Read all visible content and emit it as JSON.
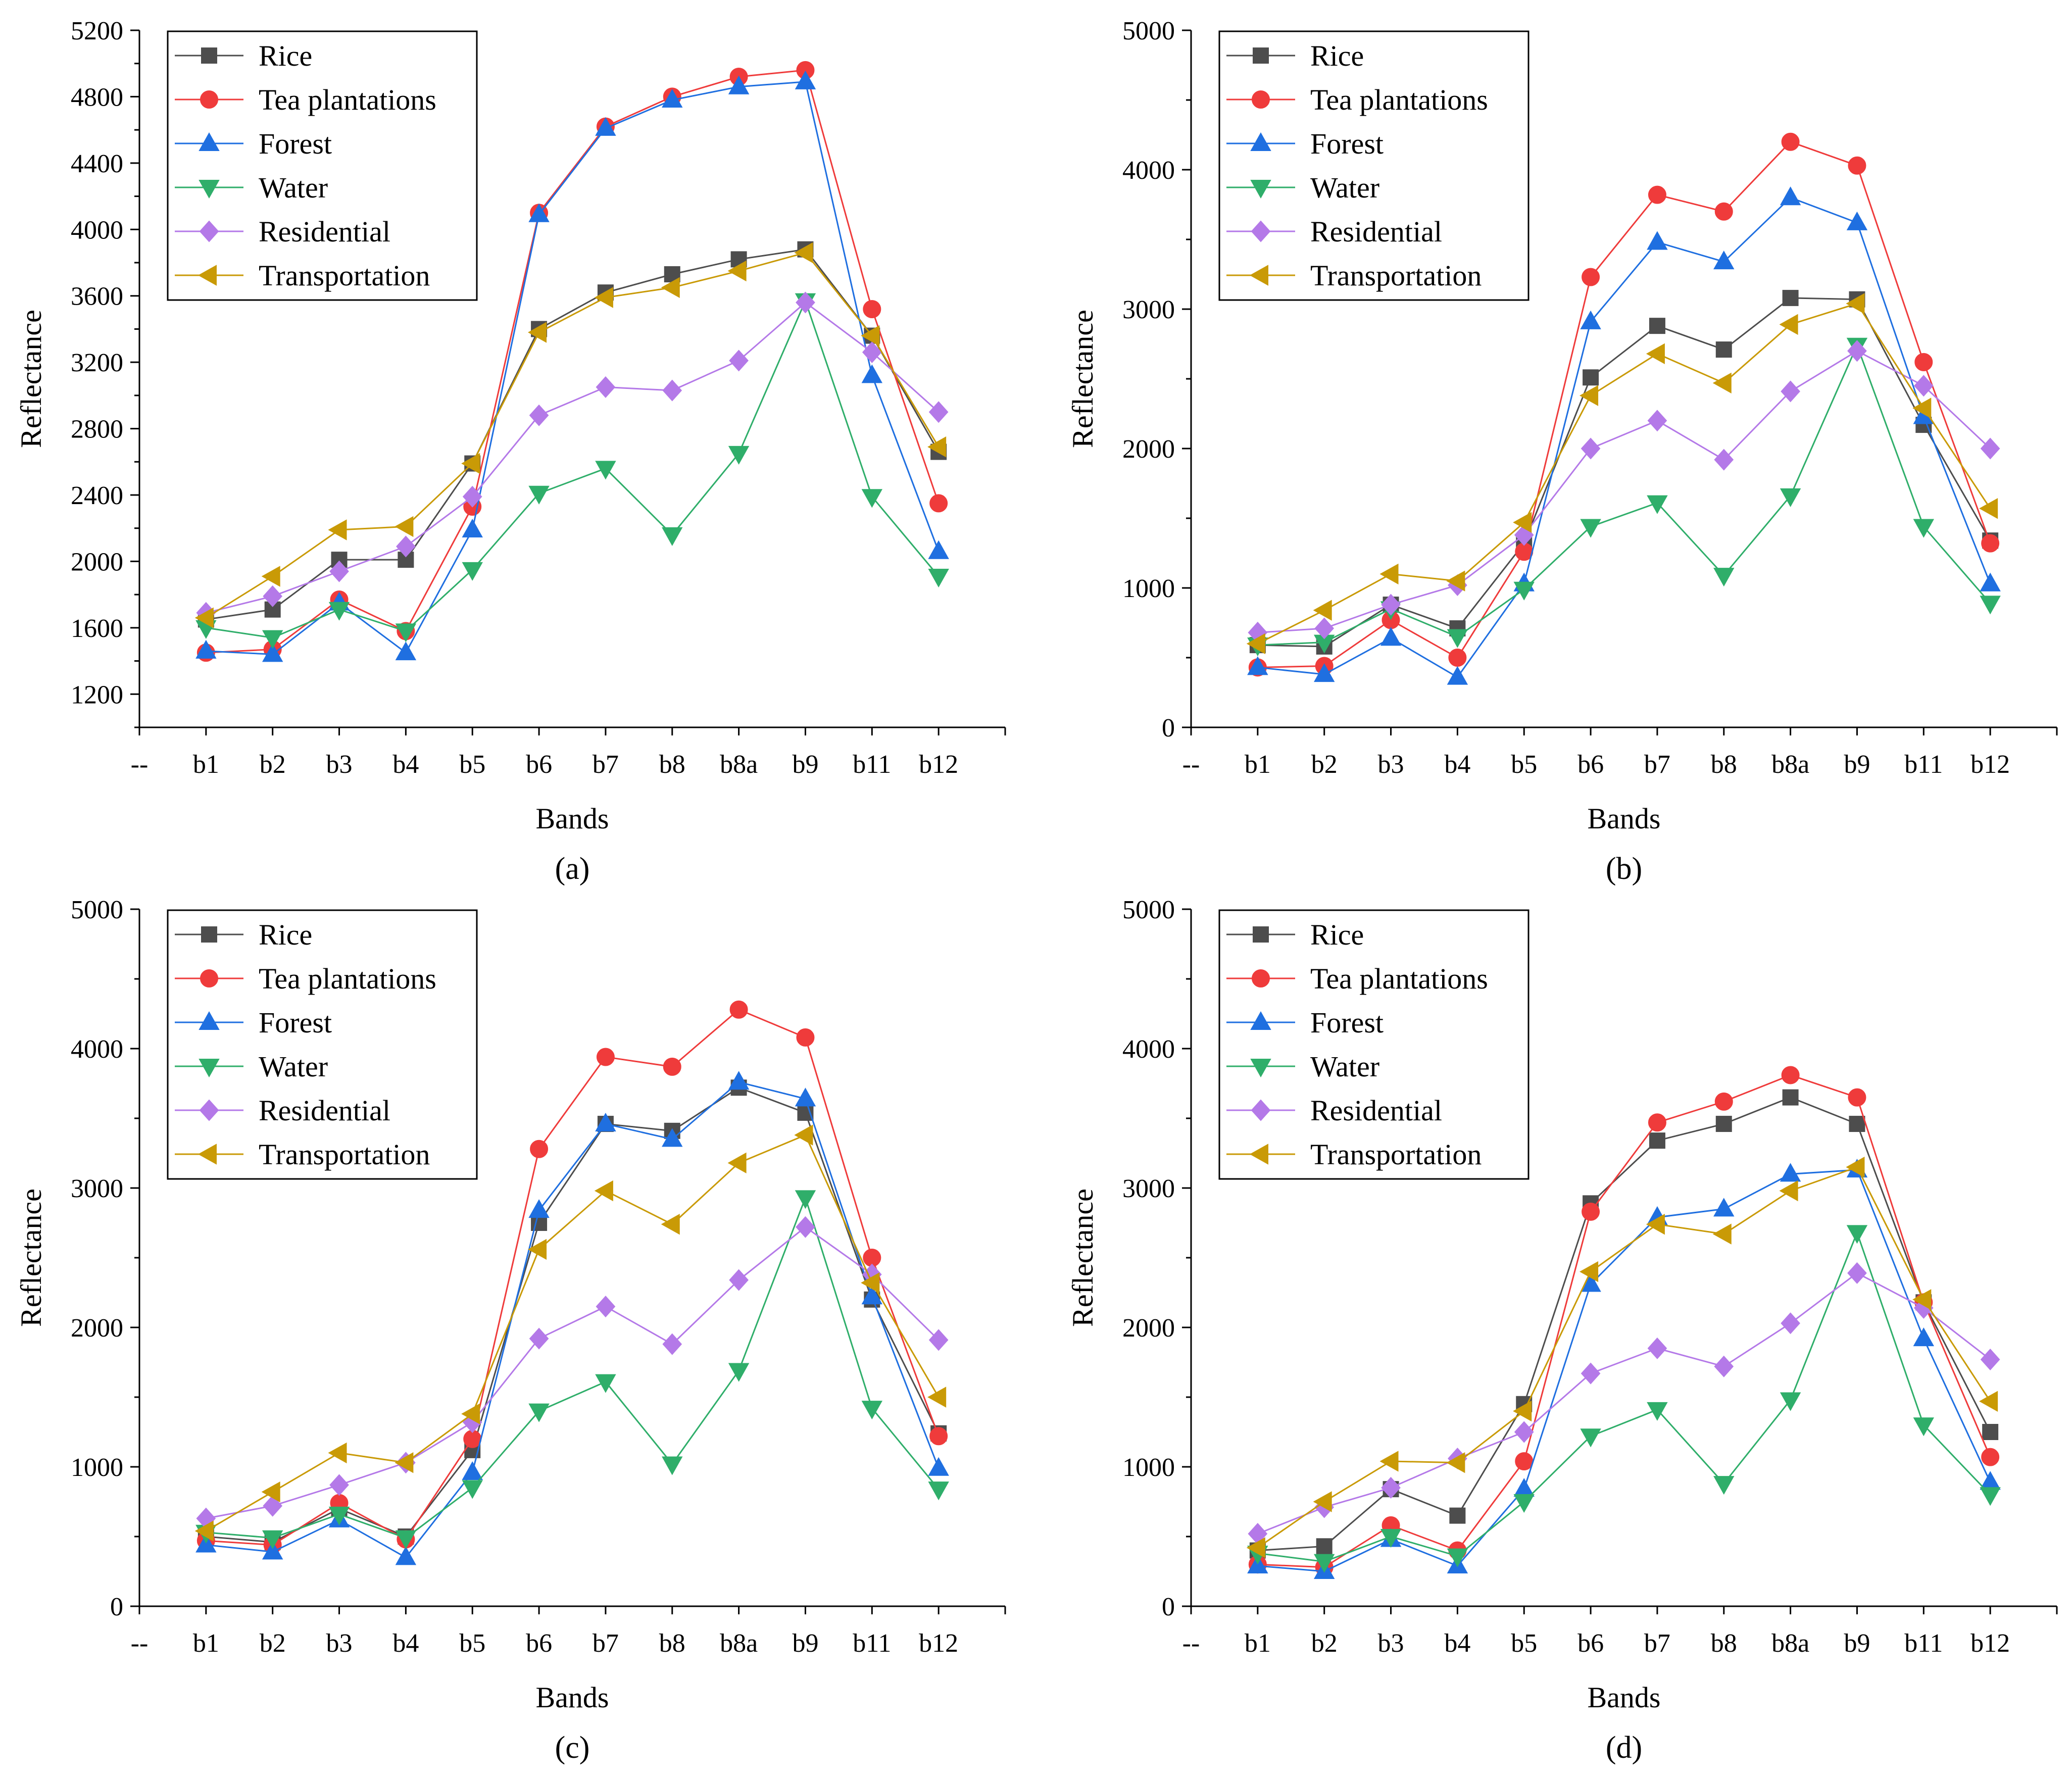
{
  "shared": {
    "xlabel": "Bands",
    "ylabel": "Reflectance",
    "categories": [
      "--",
      "b1",
      "b2",
      "b3",
      "b4",
      "b5",
      "b6",
      "b7",
      "b8",
      "b8a",
      "b9",
      "b11",
      "b12"
    ]
  },
  "series_style": [
    {
      "name": "Rice",
      "color": "#4d4d4d",
      "marker": "square"
    },
    {
      "name": "Tea plantations",
      "color": "#ef3b3b",
      "marker": "circle"
    },
    {
      "name": "Forest",
      "color": "#1f6fe0",
      "marker": "triangle-up"
    },
    {
      "name": "Water",
      "color": "#2fae6a",
      "marker": "triangle-down"
    },
    {
      "name": "Residential",
      "color": "#b479e8",
      "marker": "diamond"
    },
    {
      "name": "Transportation",
      "color": "#c99a06",
      "marker": "triangle-left"
    }
  ],
  "chart_data": [
    {
      "type": "line",
      "caption": "(a)",
      "xlabel": "Bands",
      "ylabel": "Reflectance",
      "categories": [
        "b1",
        "b2",
        "b3",
        "b4",
        "b5",
        "b6",
        "b7",
        "b8",
        "b8a",
        "b9",
        "b11",
        "b12"
      ],
      "ylim": [
        1000,
        5200
      ],
      "yticks": [
        1200,
        1600,
        2000,
        2400,
        2800,
        3200,
        3600,
        4000,
        4400,
        4800,
        5200
      ],
      "legend": "top-left",
      "series": [
        {
          "name": "Rice",
          "values": [
            1650,
            1710,
            2010,
            2010,
            2590,
            3400,
            3620,
            3730,
            3820,
            3880,
            3360,
            2660
          ]
        },
        {
          "name": "Tea plantations",
          "values": [
            1450,
            1470,
            1770,
            1580,
            2330,
            4100,
            4620,
            4800,
            4920,
            4960,
            3520,
            2350
          ]
        },
        {
          "name": "Forest",
          "values": [
            1460,
            1440,
            1750,
            1450,
            2190,
            4090,
            4610,
            4780,
            4860,
            4890,
            3120,
            2060
          ]
        },
        {
          "name": "Water",
          "values": [
            1600,
            1540,
            1710,
            1580,
            1950,
            2410,
            2560,
            2160,
            2650,
            3570,
            2390,
            1910
          ]
        },
        {
          "name": "Residential",
          "values": [
            1690,
            1790,
            1940,
            2090,
            2390,
            2880,
            3050,
            3030,
            3210,
            3560,
            3260,
            2900
          ]
        },
        {
          "name": "Transportation",
          "values": [
            1660,
            1910,
            2190,
            2210,
            2590,
            3380,
            3590,
            3650,
            3750,
            3860,
            3360,
            2690
          ]
        }
      ]
    },
    {
      "type": "line",
      "caption": "(b)",
      "xlabel": "Bands",
      "ylabel": "Reflectance",
      "categories": [
        "b1",
        "b2",
        "b3",
        "b4",
        "b5",
        "b6",
        "b7",
        "b8",
        "b8a",
        "b9",
        "b11",
        "b12"
      ],
      "ylim": [
        0,
        5000
      ],
      "yticks": [
        0,
        1000,
        2000,
        3000,
        4000,
        5000
      ],
      "legend": "top-left",
      "series": [
        {
          "name": "Rice",
          "values": [
            590,
            580,
            880,
            710,
            1320,
            2510,
            2880,
            2710,
            3080,
            3070,
            2170,
            1340
          ]
        },
        {
          "name": "Tea plantations",
          "values": [
            430,
            440,
            770,
            500,
            1260,
            3230,
            3820,
            3700,
            4200,
            4030,
            2620,
            1320
          ]
        },
        {
          "name": "Forest",
          "values": [
            430,
            380,
            640,
            360,
            1030,
            2910,
            3480,
            3340,
            3800,
            3620,
            2230,
            1030
          ]
        },
        {
          "name": "Water",
          "values": [
            590,
            610,
            850,
            650,
            990,
            1440,
            1610,
            1090,
            1660,
            2740,
            1440,
            890
          ]
        },
        {
          "name": "Residential",
          "values": [
            680,
            710,
            880,
            1020,
            1380,
            2000,
            2200,
            1920,
            2410,
            2700,
            2450,
            2000
          ]
        },
        {
          "name": "Transportation",
          "values": [
            600,
            840,
            1100,
            1050,
            1470,
            2380,
            2680,
            2470,
            2890,
            3040,
            2290,
            1570
          ]
        }
      ]
    },
    {
      "type": "line",
      "caption": "(c)",
      "xlabel": "Bands",
      "ylabel": "Reflectance",
      "categories": [
        "b1",
        "b2",
        "b3",
        "b4",
        "b5",
        "b6",
        "b7",
        "b8",
        "b8a",
        "b9",
        "b11",
        "b12"
      ],
      "ylim": [
        0,
        5000
      ],
      "yticks": [
        0,
        1000,
        2000,
        3000,
        4000,
        5000
      ],
      "legend": "top-left",
      "series": [
        {
          "name": "Rice",
          "values": [
            500,
            460,
            700,
            500,
            1120,
            2750,
            3460,
            3410,
            3720,
            3540,
            2200,
            1240
          ]
        },
        {
          "name": "Tea plantations",
          "values": [
            470,
            440,
            740,
            480,
            1200,
            3280,
            3940,
            3870,
            4280,
            4080,
            2500,
            1220
          ]
        },
        {
          "name": "Forest",
          "values": [
            440,
            390,
            620,
            350,
            960,
            2840,
            3460,
            3350,
            3760,
            3640,
            2220,
            990
          ]
        },
        {
          "name": "Water",
          "values": [
            530,
            490,
            660,
            490,
            850,
            1400,
            1610,
            1020,
            1690,
            2930,
            1420,
            840
          ]
        },
        {
          "name": "Residential",
          "values": [
            630,
            720,
            870,
            1030,
            1320,
            1920,
            2150,
            1880,
            2340,
            2720,
            2380,
            1910
          ]
        },
        {
          "name": "Transportation",
          "values": [
            540,
            820,
            1100,
            1030,
            1380,
            2560,
            2980,
            2740,
            3180,
            3380,
            2320,
            1500
          ]
        }
      ]
    },
    {
      "type": "line",
      "caption": "(d)",
      "xlabel": "Bands",
      "ylabel": "Reflectance",
      "categories": [
        "b1",
        "b2",
        "b3",
        "b4",
        "b5",
        "b6",
        "b7",
        "b8",
        "b8a",
        "b9",
        "b11",
        "b12"
      ],
      "ylim": [
        0,
        5000
      ],
      "yticks": [
        0,
        1000,
        2000,
        3000,
        4000,
        5000
      ],
      "legend": "top-left",
      "series": [
        {
          "name": "Rice",
          "values": [
            400,
            430,
            840,
            650,
            1450,
            2890,
            3340,
            3460,
            3650,
            3460,
            2180,
            1250
          ]
        },
        {
          "name": "Tea plantations",
          "values": [
            300,
            280,
            580,
            400,
            1040,
            2830,
            3470,
            3620,
            3810,
            3650,
            2180,
            1070
          ]
        },
        {
          "name": "Forest",
          "values": [
            290,
            250,
            480,
            290,
            840,
            2310,
            2790,
            2850,
            3100,
            3130,
            1920,
            890
          ]
        },
        {
          "name": "Water",
          "values": [
            380,
            320,
            500,
            360,
            750,
            1220,
            1410,
            880,
            1480,
            2680,
            1300,
            800
          ]
        },
        {
          "name": "Residential",
          "values": [
            520,
            710,
            850,
            1060,
            1250,
            1670,
            1850,
            1720,
            2030,
            2390,
            2140,
            1770
          ]
        },
        {
          "name": "Transportation",
          "values": [
            420,
            750,
            1040,
            1030,
            1400,
            2400,
            2740,
            2670,
            2980,
            3150,
            2200,
            1470
          ]
        }
      ]
    }
  ]
}
